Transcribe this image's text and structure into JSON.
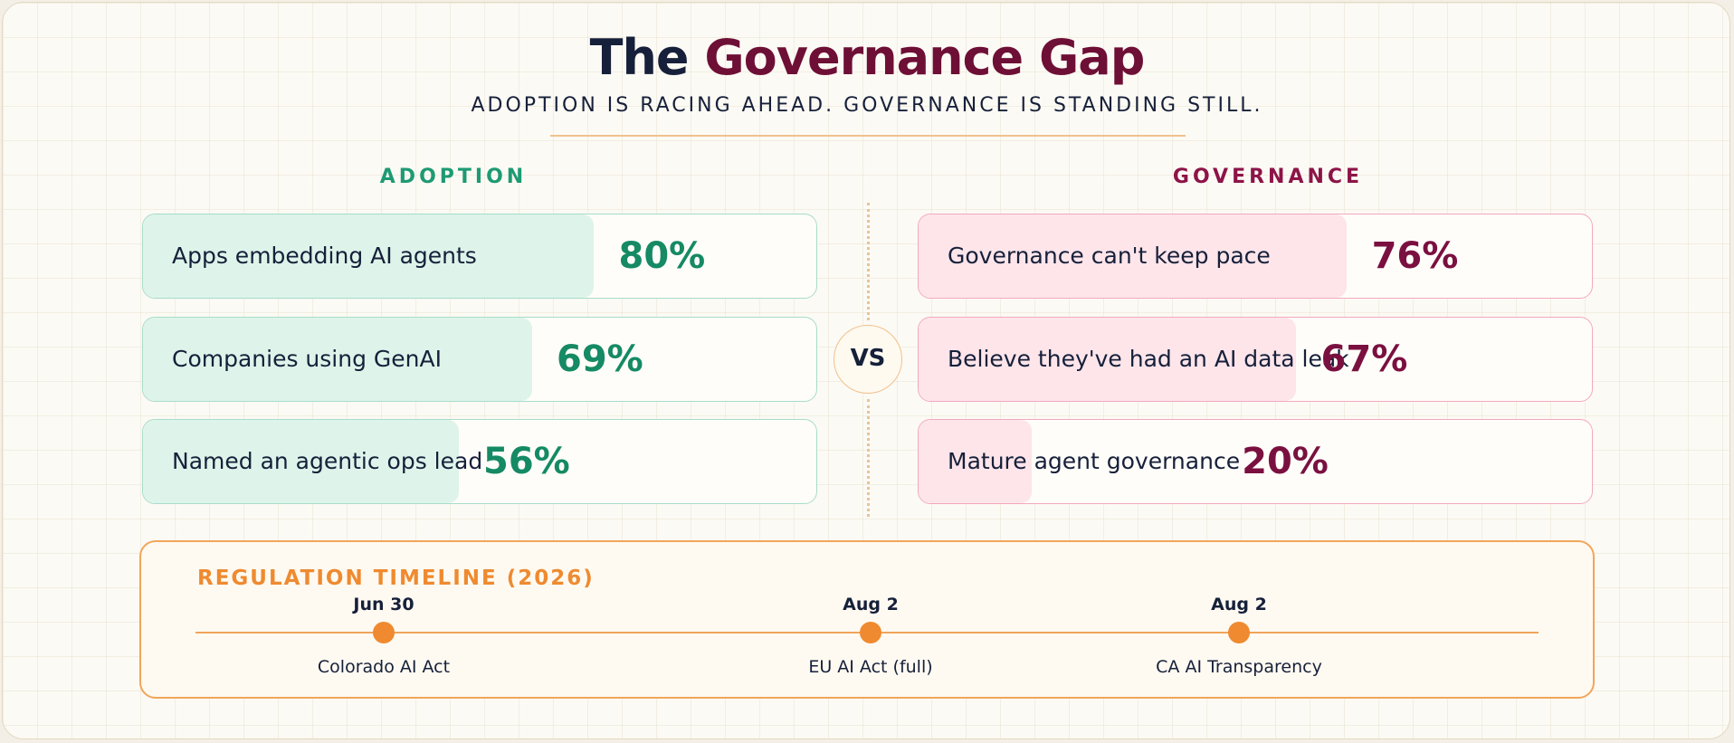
{
  "header": {
    "title_part1": "The",
    "title_part2": "Governance Gap",
    "subtitle": "ADOPTION IS RACING AHEAD. GOVERNANCE IS STANDING STILL."
  },
  "adoption": {
    "heading": "ADOPTION",
    "accent_color": "#1d9a73",
    "items": [
      {
        "label": "Apps embedding AI agents",
        "value": "80%",
        "percent": 80
      },
      {
        "label": "Companies using GenAI",
        "value": "69%",
        "percent": 69
      },
      {
        "label": "Named an agentic ops lead",
        "value": "56%",
        "percent": 56
      }
    ]
  },
  "governance": {
    "heading": "GOVERNANCE",
    "accent_color": "#8c1448",
    "items": [
      {
        "label": "Governance can't keep pace",
        "value": "76%",
        "percent": 76
      },
      {
        "label": "Believe they've had an AI data leak",
        "value": "67%",
        "percent": 67
      },
      {
        "label": "Mature agent governance",
        "value": "20%",
        "percent": 20
      }
    ]
  },
  "vs_label": "VS",
  "timeline": {
    "title": "REGULATION TIMELINE (2026)",
    "accent_color": "#ef8a30",
    "events": [
      {
        "date": "Jun 30",
        "name": "Colorado AI Act"
      },
      {
        "date": "Aug 2",
        "name": "EU AI Act (full)"
      },
      {
        "date": "Aug 2",
        "name": "CA AI Transparency"
      }
    ]
  }
}
